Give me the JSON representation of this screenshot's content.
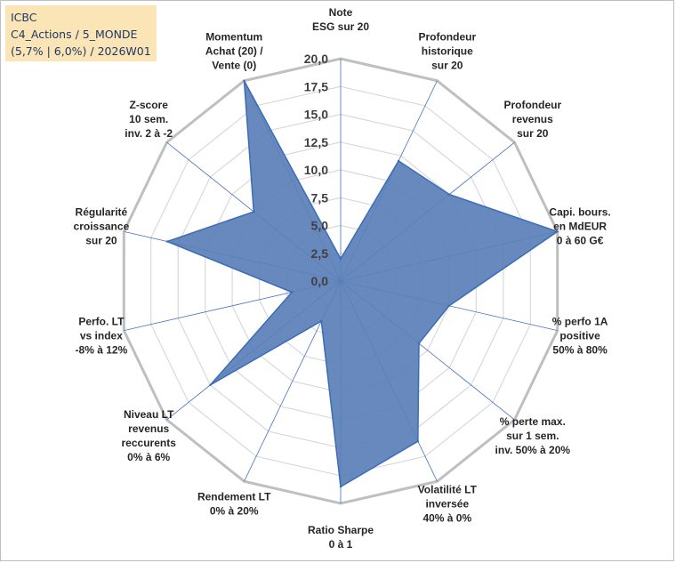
{
  "info": {
    "company": "ICBC",
    "portfolio": "C4_Actions / 5_MONDE",
    "stats": "(5,7% | 6,0%) / 2026W01"
  },
  "colors": {
    "fill": "#5a7fb9",
    "stroke": "#3b6cb6",
    "grid": "#d9d9d9",
    "outer_ring": "#bfbfbf",
    "spoke": "#4472c4",
    "info_bg": "#fbe5b6",
    "info_text": "#1f3864"
  },
  "chart_data": {
    "type": "radar",
    "rmin": 0,
    "rmax": 20,
    "ticks": [
      "0,0",
      "2,5",
      "5,0",
      "7,5",
      "10,0",
      "12,5",
      "15,0",
      "17,5",
      "20,0"
    ],
    "axes": [
      {
        "label": [
          "Note",
          "ESG sur 20"
        ],
        "value": 2.0
      },
      {
        "label": [
          "Profondeur",
          "historique",
          "sur 20"
        ],
        "value": 12.0
      },
      {
        "label": [
          "Profondeur",
          "revenus",
          "sur 20"
        ],
        "value": 12.5
      },
      {
        "label": [
          "Capi. bours.",
          "en MdEUR",
          "0 à 60 G€"
        ],
        "value": 20.0
      },
      {
        "label": [
          "% perfo 1A",
          "positive",
          "50% à 80%"
        ],
        "value": 10.0
      },
      {
        "label": [
          "% perte max.",
          "sur 1 sem.",
          "inv. 50% à 20%"
        ],
        "value": 9.0
      },
      {
        "label": [
          "Volatilité LT",
          "inversée",
          "40% à 0%"
        ],
        "value": 16.0
      },
      {
        "label": [
          "Ratio Sharpe",
          "0 à 1"
        ],
        "value": 18.5
      },
      {
        "label": [
          "Rendement LT",
          "0% à 20%"
        ],
        "value": 4.0
      },
      {
        "label": [
          "Niveau LT",
          "revenus",
          "reccurents",
          "0% à 6%"
        ],
        "value": 15.0
      },
      {
        "label": [
          "Perfo. LT",
          "vs index",
          "-8% à 12%"
        ],
        "value": 4.5
      },
      {
        "label": [
          "Régularité",
          "croissance",
          "sur 20"
        ],
        "value": 16.0
      },
      {
        "label": [
          "Z-score",
          "10 sem.",
          "inv. 2 à -2"
        ],
        "value": 10.0
      },
      {
        "label": [
          "Momentum",
          "Achat (20) /",
          "Vente (0)"
        ],
        "value": 20.0
      }
    ]
  }
}
